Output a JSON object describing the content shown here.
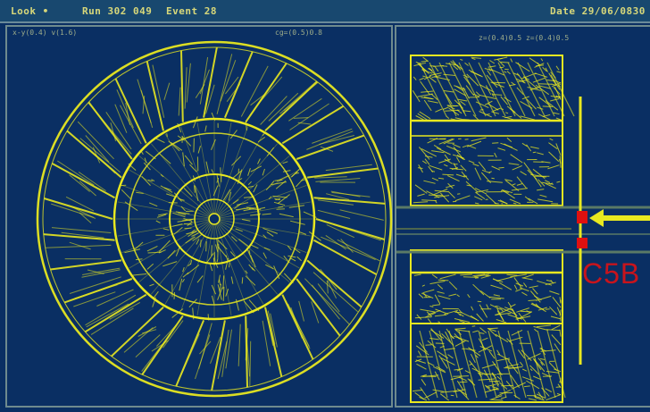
{
  "header": {
    "menu_label": "Look •",
    "run_label": "Run 302 049",
    "event_label": "Event 28",
    "date_label": "Date 29/06/0830"
  },
  "left_panel": {
    "top_left_label": "x-y(0.4) v(1.6)",
    "top_right_label": "cg=(0.5)0.8"
  },
  "right_panel": {
    "top_label": "z=(0.4)0.5   z=(0.4)0.5"
  },
  "annotation": {
    "module_label": "C5B"
  },
  "colors": {
    "background": "#0a2f63",
    "track_yellow": "#e8e820",
    "highlight_red": "#e01010",
    "label_red": "#c8141c"
  }
}
